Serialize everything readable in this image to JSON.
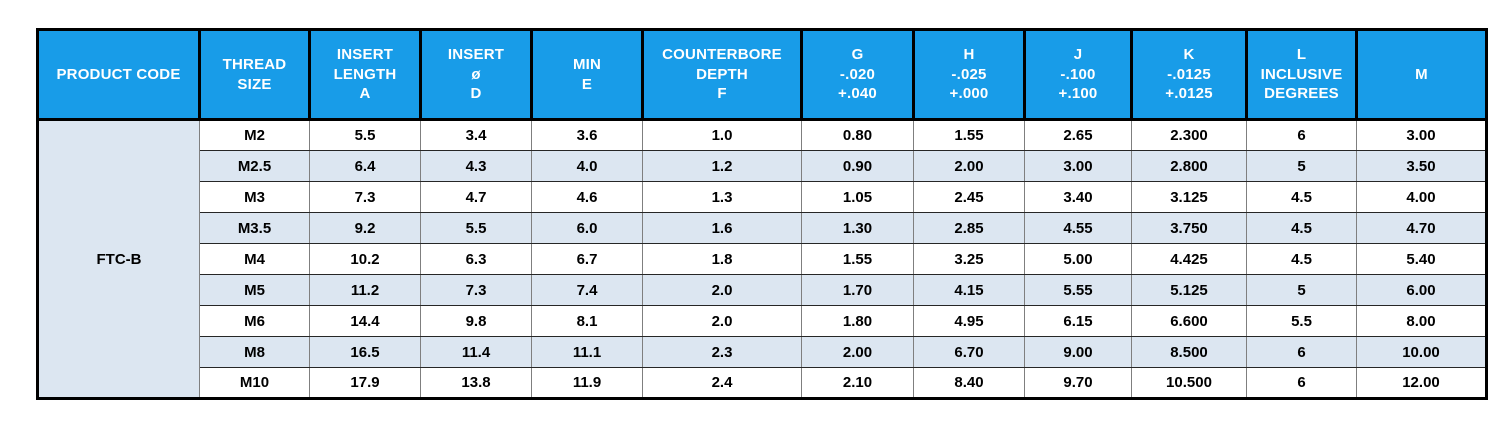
{
  "theme": {
    "header_bg": "#189CE8",
    "header_fg": "#FFFFFF",
    "stripe_bg": "#DCE6F1",
    "grid_thick": "#000000",
    "grid_thin": "#7F7F7F"
  },
  "table": {
    "product_code": "FTC-B",
    "columns": [
      {
        "id": "product-code",
        "lines": [
          "PRODUCT CODE"
        ]
      },
      {
        "id": "thread-size",
        "lines": [
          "THREAD",
          "SIZE"
        ]
      },
      {
        "id": "insert-length-a",
        "lines": [
          "INSERT",
          "LENGTH",
          "A"
        ]
      },
      {
        "id": "insert-dia-d",
        "lines": [
          "INSERT",
          "ø",
          "D"
        ]
      },
      {
        "id": "min-e",
        "lines": [
          "MIN",
          "E"
        ]
      },
      {
        "id": "counterbore-depth-f",
        "lines": [
          "COUNTERBORE",
          "DEPTH",
          "F"
        ]
      },
      {
        "id": "g",
        "lines": [
          "G",
          "-.020",
          "+.040"
        ]
      },
      {
        "id": "h",
        "lines": [
          "H",
          "-.025",
          "+.000"
        ]
      },
      {
        "id": "j",
        "lines": [
          "J",
          "-.100",
          "+.100"
        ]
      },
      {
        "id": "k",
        "lines": [
          "K",
          "-.0125",
          "+.0125"
        ]
      },
      {
        "id": "l-inclusive-degrees",
        "lines": [
          "L",
          "INCLUSIVE",
          "DEGREES"
        ]
      },
      {
        "id": "m",
        "lines": [
          "M"
        ]
      }
    ],
    "rows": [
      {
        "thread_size": "M2",
        "values": [
          "5.5",
          "3.4",
          "3.6",
          "1.0",
          "0.80",
          "1.55",
          "2.65",
          "2.300",
          "6",
          "3.00"
        ]
      },
      {
        "thread_size": "M2.5",
        "values": [
          "6.4",
          "4.3",
          "4.0",
          "1.2",
          "0.90",
          "2.00",
          "3.00",
          "2.800",
          "5",
          "3.50"
        ]
      },
      {
        "thread_size": "M3",
        "values": [
          "7.3",
          "4.7",
          "4.6",
          "1.3",
          "1.05",
          "2.45",
          "3.40",
          "3.125",
          "4.5",
          "4.00"
        ]
      },
      {
        "thread_size": "M3.5",
        "values": [
          "9.2",
          "5.5",
          "6.0",
          "1.6",
          "1.30",
          "2.85",
          "4.55",
          "3.750",
          "4.5",
          "4.70"
        ]
      },
      {
        "thread_size": "M4",
        "values": [
          "10.2",
          "6.3",
          "6.7",
          "1.8",
          "1.55",
          "3.25",
          "5.00",
          "4.425",
          "4.5",
          "5.40"
        ]
      },
      {
        "thread_size": "M5",
        "values": [
          "11.2",
          "7.3",
          "7.4",
          "2.0",
          "1.70",
          "4.15",
          "5.55",
          "5.125",
          "5",
          "6.00"
        ]
      },
      {
        "thread_size": "M6",
        "values": [
          "14.4",
          "9.8",
          "8.1",
          "2.0",
          "1.80",
          "4.95",
          "6.15",
          "6.600",
          "5.5",
          "8.00"
        ]
      },
      {
        "thread_size": "M8",
        "values": [
          "16.5",
          "11.4",
          "11.1",
          "2.3",
          "2.00",
          "6.70",
          "9.00",
          "8.500",
          "6",
          "10.00"
        ]
      },
      {
        "thread_size": "M10",
        "values": [
          "17.9",
          "13.8",
          "11.9",
          "2.4",
          "2.10",
          "8.40",
          "9.70",
          "10.500",
          "6",
          "12.00"
        ]
      }
    ]
  }
}
